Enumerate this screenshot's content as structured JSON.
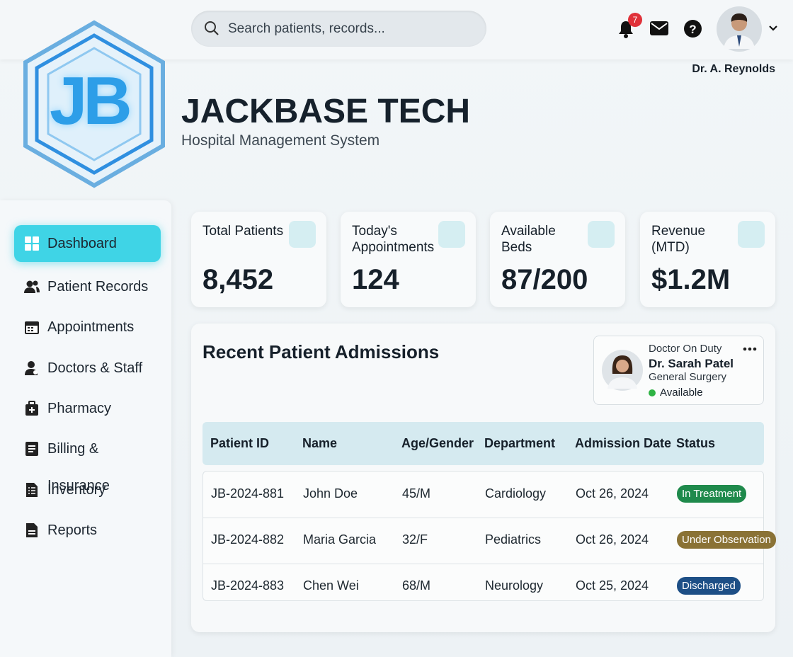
{
  "search": {
    "placeholder": "Search patients, records..."
  },
  "header": {
    "notifications": 7,
    "user": "Dr. A. Reynolds",
    "logo": "JB",
    "title": "JACKBASE TECH",
    "subtitle": "Hospital Management System"
  },
  "nav": [
    "Dashboard",
    "Patient Records",
    "Appointments",
    "Doctors & Staff",
    "Pharmacy",
    "Billing & Insurance",
    "Inventory",
    "Reports"
  ],
  "stats": [
    {
      "label": "Total Patients",
      "value": "8,452"
    },
    {
      "label": "Today's Appointments",
      "value": "124"
    },
    {
      "label": "Available Beds",
      "value": "87/200"
    },
    {
      "label": "Revenue (MTD)",
      "value": "$1.2M"
    }
  ],
  "doctor": {
    "label": "Doctor On Duty",
    "name": "Dr. Sarah Patel",
    "department": "General Surgery",
    "status": "Available"
  },
  "admissions": {
    "title": "Recent Patient Admissions",
    "columns": [
      "Patient ID",
      "Name",
      "Age/Gender",
      "Department",
      "Admission Date",
      "Status"
    ],
    "rows": [
      [
        "JB-2024-881",
        "John Doe",
        "45/M",
        "Cardiology",
        "Oct 26, 2024",
        "In Treatment"
      ],
      [
        "JB-2024-882",
        "Maria Garcia",
        "32/F",
        "Pediatrics",
        "Oct 26, 2024",
        "Under Observation"
      ],
      [
        "JB-2024-883",
        "Chen Wei",
        "68/M",
        "Neurology",
        "Oct 25, 2024",
        "Discharged"
      ]
    ]
  }
}
